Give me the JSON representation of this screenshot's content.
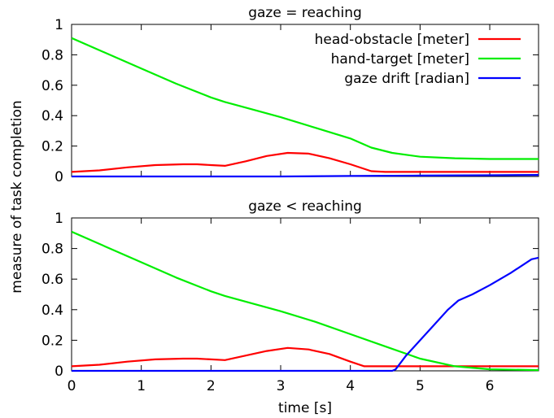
{
  "chart_data": {
    "type": "line",
    "xlabel": "time [s]",
    "ylabel": "measure of task completion",
    "xlim": [
      0,
      6.7
    ],
    "ylim": [
      0,
      1
    ],
    "xticks": [
      "0",
      "1",
      "2",
      "3",
      "4",
      "5",
      "6"
    ],
    "yticks": [
      "0",
      "0.2",
      "0.4",
      "0.6",
      "0.8",
      "1"
    ],
    "grid": false,
    "legend": {
      "placement": "top-right",
      "entries": [
        {
          "label": "head-obstacle [meter]",
          "color": "#ff0000"
        },
        {
          "label": "hand-target [meter]",
          "color": "#00ee00"
        },
        {
          "label": "gaze drift [radian]",
          "color": "#0000ff"
        }
      ]
    },
    "panels": [
      {
        "title": "gaze = reaching",
        "series": [
          {
            "name": "head-obstacle [meter]",
            "color": "#ff0000",
            "x": [
              0,
              0.4,
              0.8,
              1.2,
              1.6,
              1.8,
              2.0,
              2.2,
              2.5,
              2.8,
              3.1,
              3.4,
              3.7,
              4.0,
              4.3,
              4.5,
              5.0,
              6.0,
              6.7
            ],
            "y": [
              0.03,
              0.04,
              0.06,
              0.075,
              0.08,
              0.08,
              0.075,
              0.07,
              0.1,
              0.135,
              0.155,
              0.15,
              0.12,
              0.08,
              0.035,
              0.03,
              0.03,
              0.03,
              0.03
            ]
          },
          {
            "name": "hand-target [meter]",
            "color": "#00ee00",
            "x": [
              0,
              0.5,
              1.0,
              1.5,
              2.0,
              2.2,
              2.6,
              3.0,
              3.5,
              4.0,
              4.3,
              4.6,
              5.0,
              5.5,
              6.0,
              6.7
            ],
            "y": [
              0.91,
              0.81,
              0.71,
              0.61,
              0.52,
              0.49,
              0.44,
              0.39,
              0.32,
              0.25,
              0.19,
              0.155,
              0.13,
              0.12,
              0.115,
              0.115
            ]
          },
          {
            "name": "gaze drift [radian]",
            "color": "#0000ff",
            "x": [
              0,
              3.0,
              4.0,
              5.0,
              6.0,
              6.7
            ],
            "y": [
              0.0,
              0.0,
              0.003,
              0.006,
              0.008,
              0.01
            ]
          }
        ]
      },
      {
        "title": "gaze < reaching",
        "series": [
          {
            "name": "head-obstacle [meter]",
            "color": "#ff0000",
            "x": [
              0,
              0.4,
              0.8,
              1.2,
              1.6,
              1.8,
              2.0,
              2.2,
              2.5,
              2.8,
              3.1,
              3.4,
              3.7,
              4.0,
              4.2,
              4.5,
              5.0,
              6.0,
              6.7
            ],
            "y": [
              0.03,
              0.04,
              0.06,
              0.075,
              0.08,
              0.08,
              0.075,
              0.07,
              0.1,
              0.13,
              0.15,
              0.14,
              0.11,
              0.06,
              0.03,
              0.03,
              0.03,
              0.03,
              0.03
            ]
          },
          {
            "name": "hand-target [meter]",
            "color": "#00ee00",
            "x": [
              0,
              0.5,
              1.0,
              1.5,
              2.0,
              2.2,
              2.6,
              3.0,
              3.5,
              4.0,
              4.5,
              5.0,
              5.5,
              6.0,
              6.7
            ],
            "y": [
              0.91,
              0.81,
              0.71,
              0.61,
              0.52,
              0.49,
              0.44,
              0.39,
              0.32,
              0.24,
              0.16,
              0.08,
              0.03,
              0.01,
              0.005
            ]
          },
          {
            "name": "gaze drift [radian]",
            "color": "#0000ff",
            "x": [
              0,
              4.0,
              4.6,
              4.65,
              4.8,
              5.0,
              5.2,
              5.4,
              5.55,
              5.75,
              6.0,
              6.3,
              6.6,
              6.7
            ],
            "y": [
              0.0,
              0.0,
              0.0,
              0.01,
              0.1,
              0.2,
              0.3,
              0.4,
              0.46,
              0.5,
              0.56,
              0.64,
              0.73,
              0.74
            ]
          }
        ]
      }
    ]
  }
}
